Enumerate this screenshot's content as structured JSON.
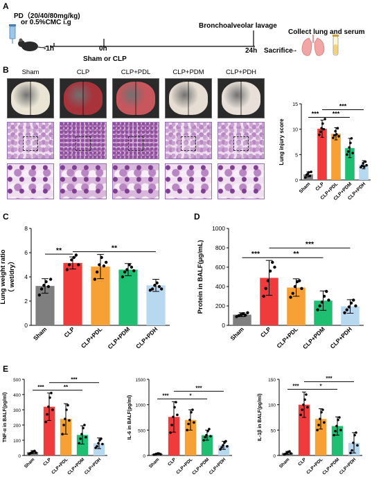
{
  "panel_a": {
    "letter": "A",
    "dose_line1": "PD（20/40/80mg/kg)",
    "dose_line2": "or 0.5%CMC i.g",
    "t_minus1": "-1h",
    "t_0": "0h",
    "t_24": "24h",
    "sham_or_clp": "Sham or CLP",
    "bronchoalveolar": "Bronchoalveolar lavage",
    "collect": "Collect lung and serum",
    "sacrifice": "Sacrifice",
    "arrow": "→",
    "colors": {
      "lung": "#f2a5a5",
      "tube": "#f3d27a",
      "mouse": "#2b2b2b",
      "syringe": "#9ec6e8"
    }
  },
  "panel_b": {
    "letter": "B",
    "columns": [
      "Sham",
      "CLP",
      "CLP+PDL",
      "CLP+PDM",
      "CLP+PDH"
    ],
    "lung_colors": [
      "#e9e4d4",
      "#a8333b",
      "#c8565d",
      "#e6ddd3",
      "#e8e0d8"
    ]
  },
  "panel_c": {
    "letter": "C"
  },
  "panel_d": {
    "letter": "D"
  },
  "panel_e": {
    "letter": "E"
  },
  "group_colors": [
    "#7f7f7f",
    "#ef3b3b",
    "#f7a035",
    "#1fbf72",
    "#b8d8f0"
  ],
  "chart_data": [
    {
      "id": "lung_injury",
      "type": "bar",
      "categories": [
        "Sham",
        "CLP",
        "CLP+PDL",
        "CLP+PDM",
        "CLP+PDH"
      ],
      "values": [
        1.1,
        10.1,
        9.1,
        6.3,
        3.0
      ],
      "errors": [
        0.5,
        1.7,
        1.2,
        1.9,
        0.8
      ],
      "points": [
        [
          0.5,
          1.0,
          1.2,
          1.5,
          0.8,
          1.6
        ],
        [
          8.9,
          9.5,
          10.2,
          11.1,
          10.0,
          12.0
        ],
        [
          8.3,
          8.8,
          9.6,
          9.0,
          10.2,
          8.6
        ],
        [
          5.0,
          5.6,
          6.4,
          7.3,
          8.2,
          5.3
        ],
        [
          2.5,
          2.8,
          3.3,
          2.6,
          3.6,
          2.9
        ]
      ],
      "ylabel": "Lung injury score",
      "ylim": [
        0,
        15
      ],
      "yticks": [
        0,
        5,
        10,
        15
      ],
      "sig": [
        {
          "from": 0,
          "to": 1,
          "label": "***"
        },
        {
          "from": 1,
          "to": 3,
          "label": "***"
        },
        {
          "from": 1,
          "to": 4,
          "label": "***"
        }
      ]
    },
    {
      "id": "lung_weight",
      "type": "bar",
      "categories": [
        "Sham",
        "CLP",
        "CLP+PDL",
        "CLP+PDM",
        "CLP+PDH"
      ],
      "values": [
        3.25,
        5.15,
        4.85,
        4.6,
        3.3
      ],
      "errors": [
        0.6,
        0.5,
        1.0,
        0.5,
        0.5
      ],
      "points": [
        [
          2.5,
          3.0,
          3.3,
          3.6,
          3.2,
          3.8
        ],
        [
          4.6,
          5.0,
          5.4,
          5.6,
          5.8,
          5.0
        ],
        [
          3.8,
          4.4,
          5.0,
          5.6,
          4.9,
          5.2
        ],
        [
          4.0,
          4.4,
          4.6,
          5.0,
          4.8,
          4.5
        ],
        [
          2.9,
          3.0,
          3.3,
          3.5,
          3.2,
          3.0
        ]
      ],
      "ylabel": "Lung weight ratio",
      "ylabel2": "（ wet/dry）",
      "ylim": [
        0,
        8
      ],
      "yticks": [
        0,
        2,
        4,
        6,
        8
      ],
      "sig": [
        {
          "from": 0,
          "to": 1,
          "label": "**"
        },
        {
          "from": 1,
          "to": 4,
          "label": "**"
        }
      ]
    },
    {
      "id": "protein_balf",
      "type": "bar",
      "categories": [
        "Sham",
        "CLP",
        "CLP+PDL",
        "CLP+PDM",
        "CLP+PDH"
      ],
      "values": [
        110,
        490,
        390,
        255,
        195
      ],
      "errors": [
        20,
        180,
        90,
        100,
        70
      ],
      "points": [
        [
          90,
          100,
          110,
          120,
          105,
          130
        ],
        [
          300,
          380,
          460,
          560,
          650,
          600
        ],
        [
          290,
          330,
          400,
          450,
          460,
          380
        ],
        [
          160,
          200,
          240,
          300,
          350,
          260
        ],
        [
          130,
          160,
          190,
          230,
          260,
          200
        ]
      ],
      "ylabel": "Protein in BALF(μg/mL)",
      "ylim": [
        0,
        1000
      ],
      "yticks": [
        0,
        200,
        400,
        600,
        800,
        1000
      ],
      "sig": [
        {
          "from": 0,
          "to": 1,
          "label": "***"
        },
        {
          "from": 1,
          "to": 3,
          "label": "**"
        },
        {
          "from": 1,
          "to": 4,
          "label": "***"
        }
      ]
    },
    {
      "id": "tnf",
      "type": "bar",
      "categories": [
        "Sham",
        "CLP",
        "CLP+PDL",
        "CLP+PDM",
        "CLP+PDH"
      ],
      "values": [
        22,
        320,
        240,
        135,
        80
      ],
      "errors": [
        10,
        90,
        100,
        60,
        35
      ],
      "points": [
        [
          10,
          15,
          20,
          25,
          30,
          18
        ],
        [
          220,
          270,
          320,
          380,
          410,
          300
        ],
        [
          140,
          200,
          240,
          300,
          330,
          230
        ],
        [
          80,
          110,
          140,
          180,
          200,
          120
        ],
        [
          50,
          60,
          80,
          100,
          110,
          75
        ]
      ],
      "ylabel": "TNF-α in BALF(pg/ml)",
      "ylim": [
        0,
        500
      ],
      "yticks": [
        0,
        100,
        200,
        300,
        400,
        500
      ],
      "sig": [
        {
          "from": 0,
          "to": 1,
          "label": "***"
        },
        {
          "from": 1,
          "to": 3,
          "label": "**"
        },
        {
          "from": 1,
          "to": 4,
          "label": "***"
        }
      ]
    },
    {
      "id": "il6",
      "type": "bar",
      "categories": [
        "Sham",
        "CLP",
        "CLP+PDL",
        "CLP+PDM",
        "CLP+PDH"
      ],
      "values": [
        30,
        760,
        700,
        400,
        200
      ],
      "errors": [
        15,
        300,
        200,
        100,
        80
      ],
      "points": [
        [
          15,
          20,
          30,
          40,
          35,
          25
        ],
        [
          450,
          600,
          760,
          950,
          1050,
          800
        ],
        [
          500,
          620,
          700,
          850,
          900,
          650
        ],
        [
          300,
          360,
          400,
          480,
          520,
          380
        ],
        [
          120,
          160,
          200,
          250,
          280,
          180
        ]
      ],
      "ylabel": "IL-6 in BALF(pg/ml)",
      "ylim": [
        0,
        1500
      ],
      "yticks": [
        0,
        500,
        1000,
        1500
      ],
      "sig": [
        {
          "from": 0,
          "to": 1,
          "label": "***"
        },
        {
          "from": 1,
          "to": 3,
          "label": "*"
        },
        {
          "from": 1,
          "to": 4,
          "label": "***"
        }
      ]
    },
    {
      "id": "il1b",
      "type": "bar",
      "categories": [
        "Sham",
        "CLP",
        "CLP+PDL",
        "CLP+PDM",
        "CLP+PDH"
      ],
      "values": [
        5,
        100,
        72,
        58,
        25
      ],
      "errors": [
        3,
        25,
        20,
        18,
        20
      ],
      "points": [
        [
          2,
          3,
          5,
          7,
          8,
          4
        ],
        [
          80,
          90,
          100,
          110,
          120,
          95
        ],
        [
          50,
          60,
          72,
          85,
          90,
          65
        ],
        [
          40,
          48,
          58,
          70,
          75,
          50
        ],
        [
          5,
          10,
          25,
          40,
          45,
          20
        ]
      ],
      "ylabel": "IL-1β in BALF(pg/ml)",
      "ylim": [
        0,
        150
      ],
      "yticks": [
        0,
        50,
        100,
        150
      ],
      "sig": [
        {
          "from": 0,
          "to": 1,
          "label": "***"
        },
        {
          "from": 1,
          "to": 3,
          "label": "*"
        },
        {
          "from": 1,
          "to": 4,
          "label": "***"
        }
      ]
    }
  ]
}
